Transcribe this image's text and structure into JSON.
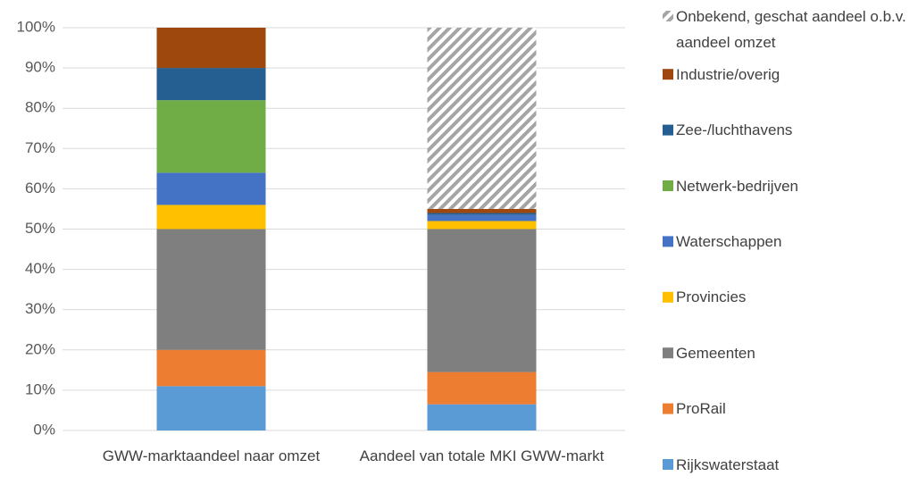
{
  "chart_data": {
    "type": "stacked_bar",
    "categories": [
      "GWW-marktaandeel naar omzet",
      "Aandeel van totale MKI GWW-markt"
    ],
    "series": [
      {
        "name": "Rijkswaterstaat",
        "color": "#5b9bd5",
        "values": [
          11,
          6.5
        ]
      },
      {
        "name": "ProRail",
        "color": "#ed7d31",
        "values": [
          9,
          8
        ]
      },
      {
        "name": "Gemeenten",
        "color": "#7f7f7f",
        "values": [
          30,
          35.5
        ]
      },
      {
        "name": "Provincies",
        "color": "#ffc000",
        "values": [
          6,
          2
        ]
      },
      {
        "name": "Waterschappen",
        "color": "#4472c4",
        "values": [
          8,
          1.5
        ]
      },
      {
        "name": "Netwerk-bedrijven",
        "color": "#70ad47",
        "values": [
          18,
          0
        ]
      },
      {
        "name": "Zee-/luchthavens",
        "color": "#255e91",
        "values": [
          8,
          0.5
        ]
      },
      {
        "name": "Industrie/overig",
        "color": "#9e480e",
        "values": [
          10,
          1
        ]
      },
      {
        "name": "Onbekend, geschat aandeel o.b.v. aandeel omzet",
        "color": "#a5a5a5",
        "hatch": true,
        "values": [
          0,
          45
        ]
      }
    ],
    "ylim": [
      0,
      100
    ],
    "yticks": [
      {
        "value": 0,
        "label": "0%"
      },
      {
        "value": 10,
        "label": "10%"
      },
      {
        "value": 20,
        "label": "20%"
      },
      {
        "value": 30,
        "label": "30%"
      },
      {
        "value": 40,
        "label": "40%"
      },
      {
        "value": 50,
        "label": "50%"
      },
      {
        "value": 60,
        "label": "60%"
      },
      {
        "value": 70,
        "label": "70%"
      },
      {
        "value": 80,
        "label": "80%"
      },
      {
        "value": 90,
        "label": "90%"
      },
      {
        "value": 100,
        "label": "100%"
      }
    ],
    "grid": true,
    "legend": "right"
  }
}
